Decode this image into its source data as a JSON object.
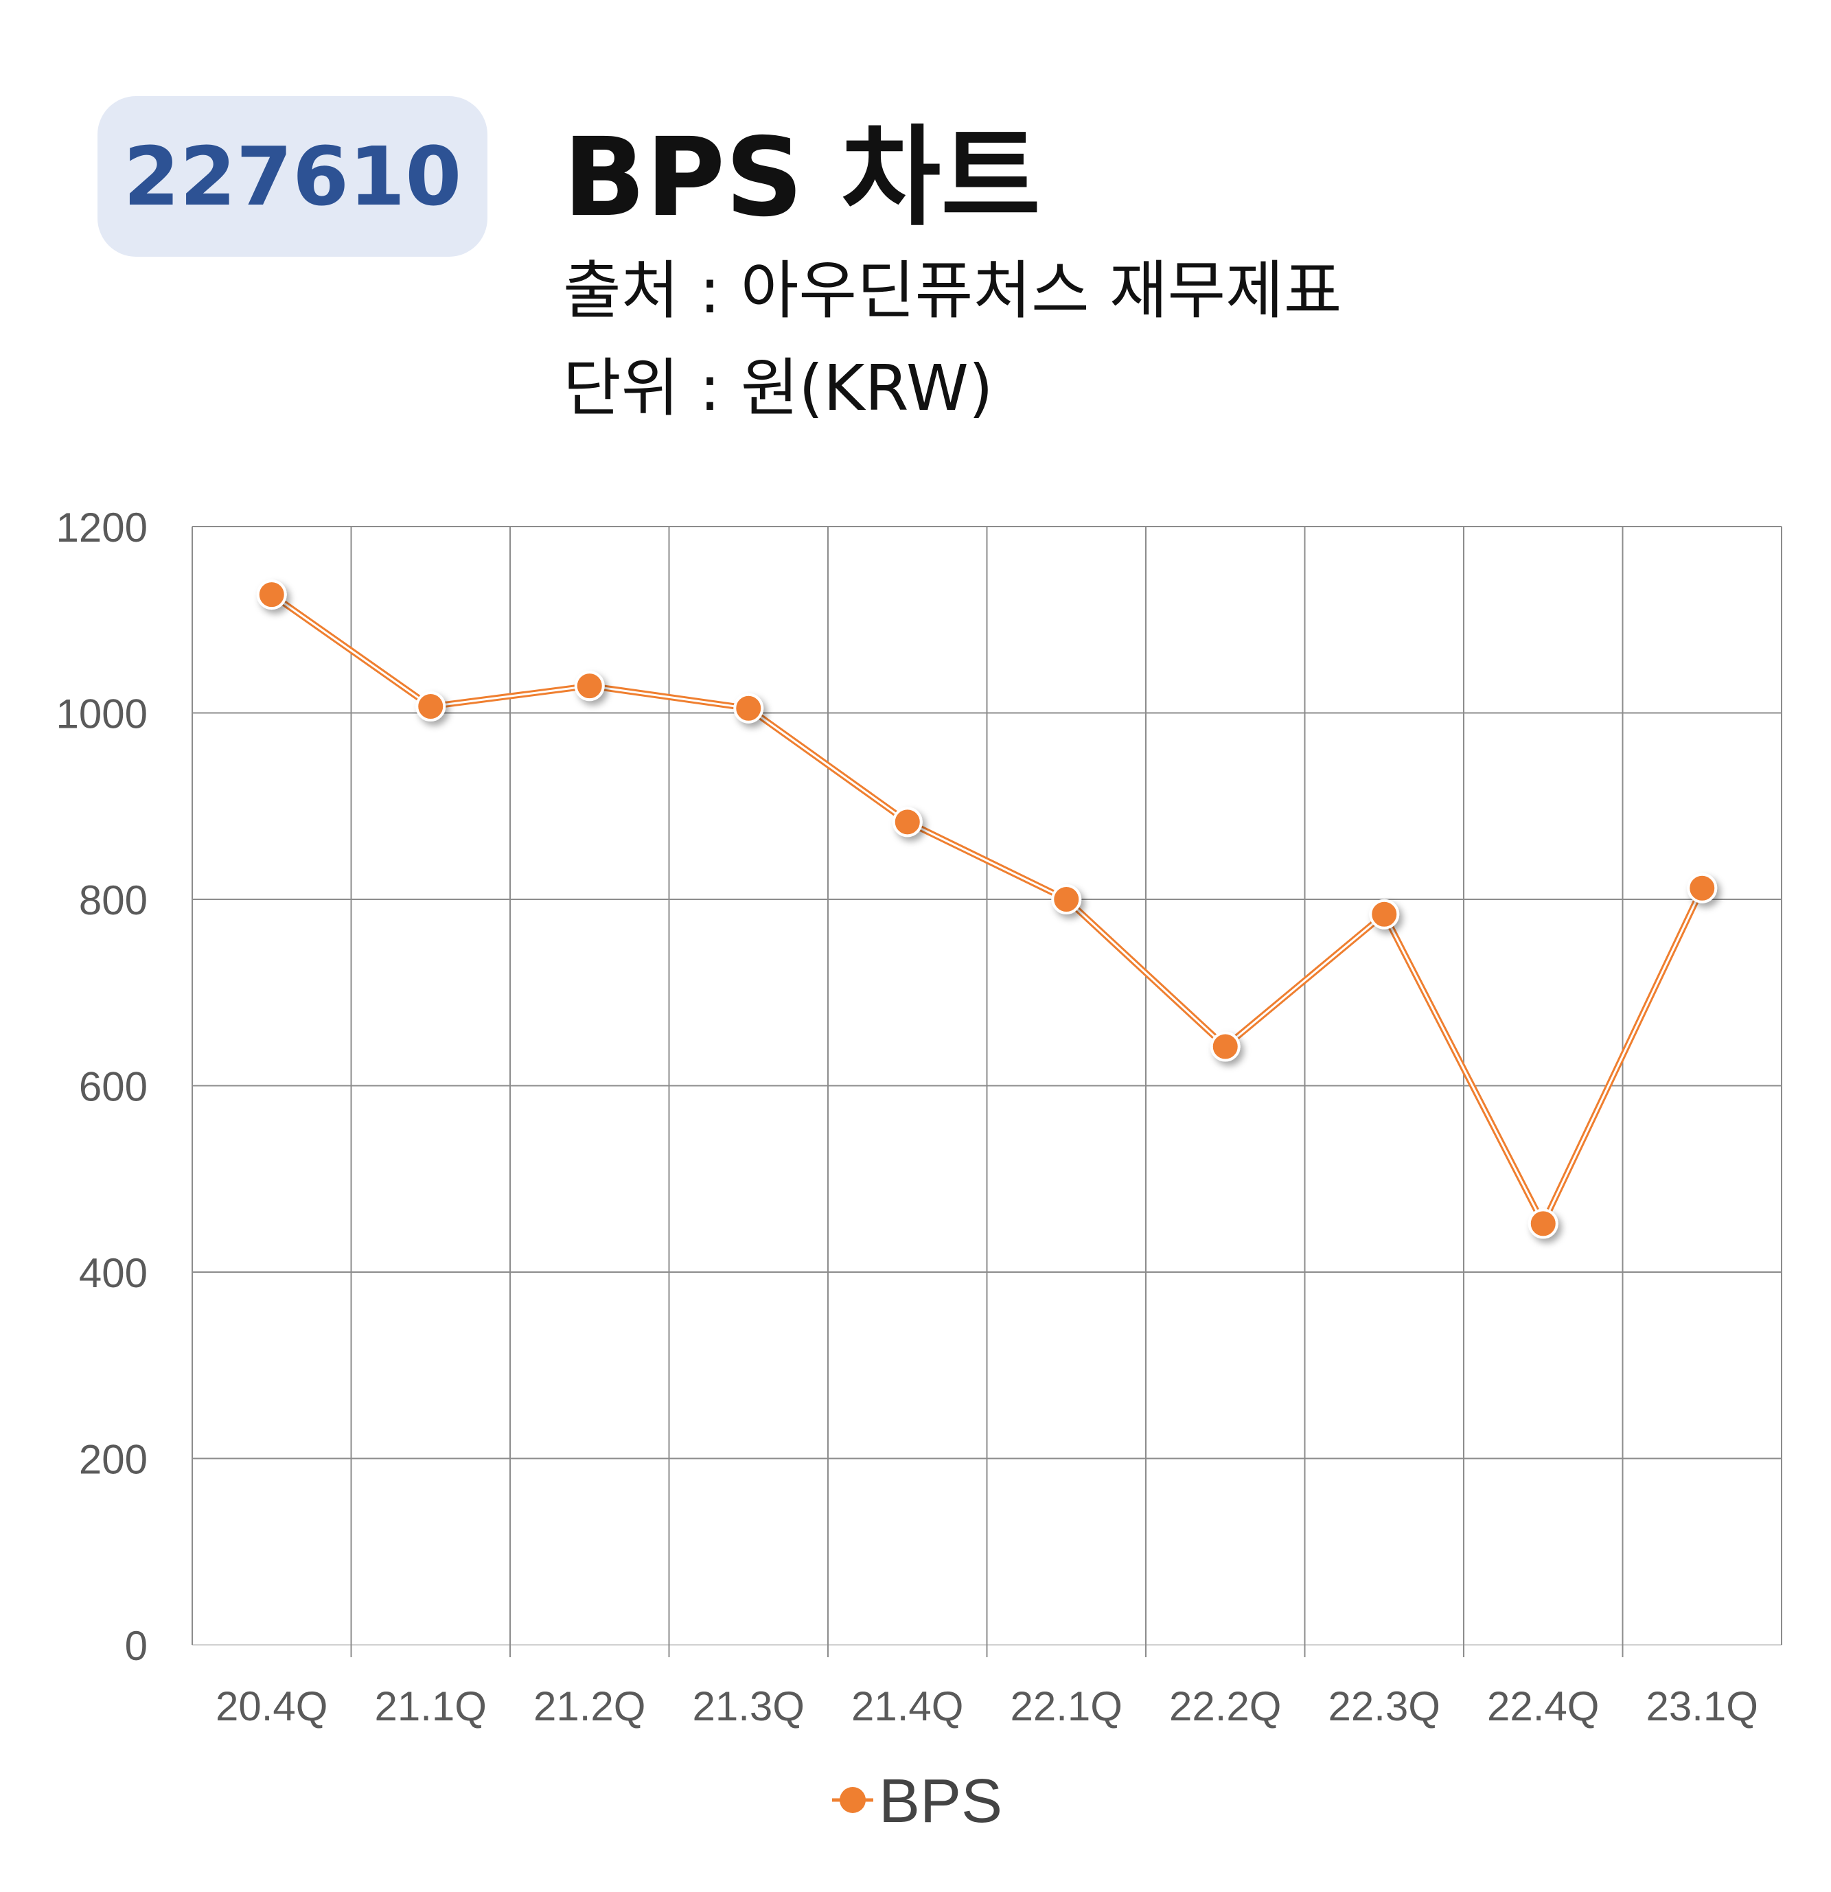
{
  "header": {
    "stock_code": "227610",
    "title": "BPS 차트",
    "source_line": "출처 : 아우딘퓨처스 재무제표",
    "unit_line": "단위 : 원(KRW)"
  },
  "colors": {
    "badge_bg": "#e3e9f5",
    "badge_text": "#2d5294",
    "series": "#ef7f30",
    "grid": "#8c8c8c",
    "tick_text": "#5a5a5a"
  },
  "chart_data": {
    "type": "line",
    "categories": [
      "20.4Q",
      "21.1Q",
      "21.2Q",
      "21.3Q",
      "21.4Q",
      "22.1Q",
      "22.2Q",
      "22.3Q",
      "22.4Q",
      "23.1Q"
    ],
    "series": [
      {
        "name": "BPS",
        "values": [
          1127,
          1007,
          1029,
          1005,
          883,
          800,
          642,
          784,
          452,
          812
        ]
      }
    ],
    "y_ticks": [
      "0",
      "200",
      "400",
      "600",
      "800",
      "1000",
      "1200"
    ],
    "ylim": [
      0,
      1200
    ],
    "grid": true,
    "legend": "bottom-center",
    "legend_label": "BPS"
  }
}
